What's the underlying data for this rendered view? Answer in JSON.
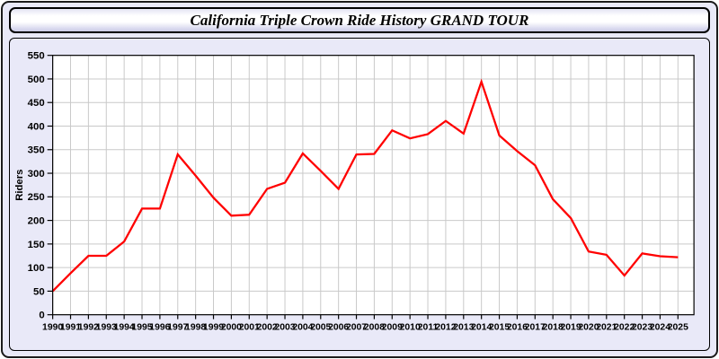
{
  "window": {
    "title": "California Triple Crown Ride History GRAND TOUR"
  },
  "chart_data": {
    "type": "line",
    "title": "California Triple Crown Ride History GRAND TOUR",
    "xlabel": "",
    "ylabel": "Riders",
    "x": [
      1990,
      1991,
      1992,
      1993,
      1994,
      1995,
      1996,
      1997,
      1998,
      1999,
      2000,
      2001,
      2002,
      2003,
      2004,
      2005,
      2006,
      2007,
      2008,
      2009,
      2010,
      2011,
      2012,
      2013,
      2014,
      2015,
      2016,
      2017,
      2018,
      2019,
      2020,
      2021,
      2022,
      2023,
      2024,
      2025
    ],
    "series": [
      {
        "name": "Riders",
        "color": "#ff0000",
        "values": [
          50,
          88,
          125,
          125,
          155,
          225,
          225,
          340,
          295,
          248,
          210,
          212,
          267,
          280,
          342,
          305,
          267,
          340,
          341,
          391,
          374,
          383,
          411,
          384,
          494,
          380,
          347,
          317,
          245,
          205,
          134,
          127,
          83,
          130,
          124,
          122
        ]
      }
    ],
    "ylim": [
      0,
      550
    ],
    "ytick_step": 50,
    "grid": true,
    "legend_position": "none"
  },
  "colors": {
    "line": "#ff0000",
    "panel_bg": "#e9e9f8",
    "plot_bg": "#ffffff",
    "gridline": "#c9c9c9",
    "axis": "#000000",
    "label": "#000000"
  }
}
